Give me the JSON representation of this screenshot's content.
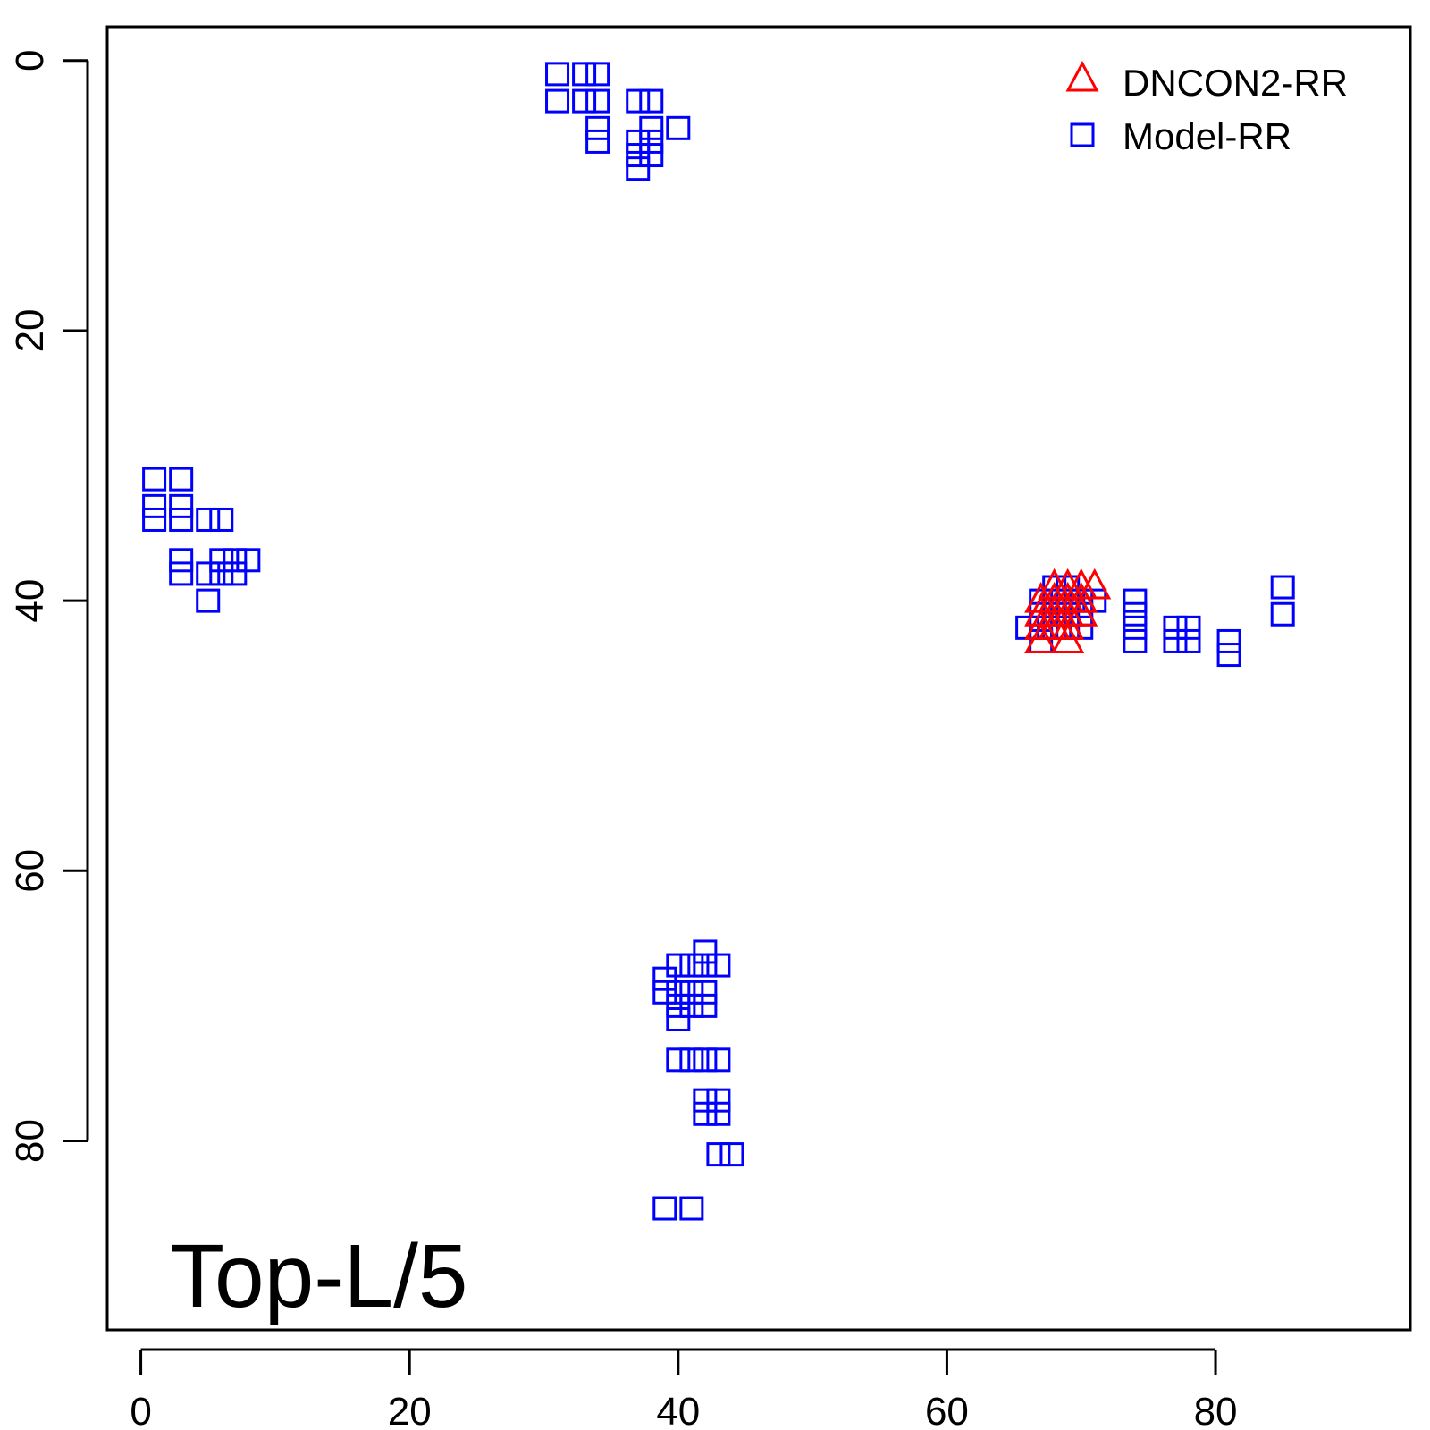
{
  "chart_data": {
    "type": "scatter",
    "annotation": "Top-L/5",
    "xlim": [
      -2.5,
      94.5
    ],
    "ylim": [
      -2.5,
      94
    ],
    "y_reversed": true,
    "x_ticks": [
      0,
      20,
      40,
      60,
      80
    ],
    "y_ticks": [
      0,
      20,
      40,
      60,
      80
    ],
    "grid": false,
    "legend_position": "top-right",
    "series": [
      {
        "name": "DNCON2-RR",
        "marker": "triangle",
        "color": "#ff0000",
        "points": [
          [
            67,
            40
          ],
          [
            67,
            41
          ],
          [
            67,
            42
          ],
          [
            67,
            43
          ],
          [
            68,
            39
          ],
          [
            68,
            40
          ],
          [
            68,
            41
          ],
          [
            68,
            42
          ],
          [
            69,
            39
          ],
          [
            69,
            40
          ],
          [
            69,
            41
          ],
          [
            69,
            42
          ],
          [
            69,
            43
          ],
          [
            70,
            39
          ],
          [
            70,
            40
          ],
          [
            70,
            41
          ],
          [
            71,
            39
          ]
        ]
      },
      {
        "name": "Model-RR",
        "marker": "square",
        "color": "#0000ff",
        "points": [
          [
            1,
            31
          ],
          [
            1,
            33
          ],
          [
            1,
            34
          ],
          [
            3,
            31
          ],
          [
            3,
            33
          ],
          [
            3,
            34
          ],
          [
            5,
            34
          ],
          [
            6,
            34
          ],
          [
            3,
            37
          ],
          [
            3,
            38
          ],
          [
            5,
            38
          ],
          [
            5,
            40
          ],
          [
            6,
            37
          ],
          [
            6,
            38
          ],
          [
            7,
            37
          ],
          [
            7,
            38
          ],
          [
            8,
            37
          ],
          [
            31,
            1
          ],
          [
            31,
            3
          ],
          [
            33,
            1
          ],
          [
            33,
            3
          ],
          [
            34,
            1
          ],
          [
            34,
            3
          ],
          [
            34,
            5
          ],
          [
            34,
            6
          ],
          [
            37,
            3
          ],
          [
            37,
            6
          ],
          [
            37,
            7
          ],
          [
            37,
            8
          ],
          [
            38,
            3
          ],
          [
            38,
            5
          ],
          [
            38,
            6
          ],
          [
            38,
            7
          ],
          [
            40,
            5
          ],
          [
            66,
            42
          ],
          [
            67,
            40
          ],
          [
            67,
            41
          ],
          [
            67,
            42
          ],
          [
            67,
            43
          ],
          [
            68,
            39
          ],
          [
            68,
            40
          ],
          [
            68,
            41
          ],
          [
            68,
            42
          ],
          [
            69,
            39
          ],
          [
            69,
            40
          ],
          [
            69,
            41
          ],
          [
            69,
            42
          ],
          [
            70,
            40
          ],
          [
            70,
            41
          ],
          [
            70,
            42
          ],
          [
            71,
            40
          ],
          [
            74,
            40
          ],
          [
            74,
            41
          ],
          [
            74,
            42
          ],
          [
            74,
            43
          ],
          [
            77,
            42
          ],
          [
            77,
            43
          ],
          [
            78,
            42
          ],
          [
            78,
            43
          ],
          [
            81,
            43
          ],
          [
            81,
            44
          ],
          [
            85,
            39
          ],
          [
            85,
            41
          ],
          [
            42,
            66
          ],
          [
            40,
            67
          ],
          [
            41,
            67
          ],
          [
            42,
            67
          ],
          [
            43,
            67
          ],
          [
            39,
            68
          ],
          [
            39,
            69
          ],
          [
            40,
            69
          ],
          [
            41,
            69
          ],
          [
            42,
            69
          ],
          [
            40,
            70
          ],
          [
            41,
            70
          ],
          [
            42,
            70
          ],
          [
            40,
            71
          ],
          [
            40,
            74
          ],
          [
            41,
            74
          ],
          [
            42,
            74
          ],
          [
            43,
            74
          ],
          [
            42,
            77
          ],
          [
            43,
            77
          ],
          [
            42,
            78
          ],
          [
            43,
            78
          ],
          [
            43,
            81
          ],
          [
            44,
            81
          ],
          [
            39,
            85
          ],
          [
            41,
            85
          ]
        ]
      }
    ]
  }
}
